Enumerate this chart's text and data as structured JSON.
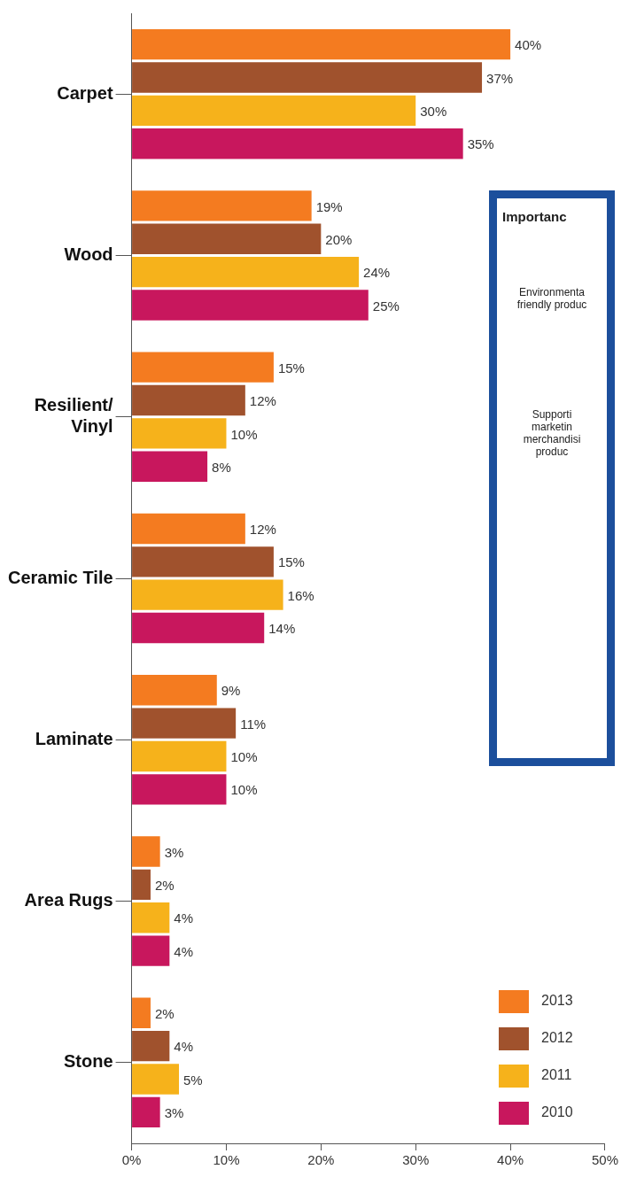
{
  "chart_data": [
    {
      "type": "bar",
      "orientation": "horizontal",
      "categories": [
        "Carpet",
        "Wood",
        "Resilient/\nVinyl",
        "Ceramic Tile",
        "Laminate",
        "Area Rugs",
        "Stone"
      ],
      "series": [
        {
          "name": "2013",
          "color": "#f47b20",
          "values": [
            40,
            19,
            15,
            12,
            9,
            3,
            2
          ],
          "value_labels": [
            "40%",
            "19%",
            "15%",
            "12%",
            "9%",
            "3%",
            "2%"
          ]
        },
        {
          "name": "2012",
          "color": "#a0522d",
          "values": [
            37,
            20,
            12,
            15,
            11,
            2,
            4
          ],
          "value_labels": [
            "37%",
            "20%",
            "12%",
            "15%",
            "11%",
            "2%",
            "4%"
          ]
        },
        {
          "name": "2011",
          "color": "#f6b21b",
          "values": [
            30,
            24,
            10,
            16,
            10,
            4,
            5
          ],
          "value_labels": [
            "30%",
            "24%",
            "10%",
            "16%",
            "10%",
            "4%",
            "5%"
          ]
        },
        {
          "name": "2010",
          "color": "#c8175d",
          "values": [
            35,
            25,
            8,
            14,
            10,
            4,
            3
          ],
          "value_labels": [
            "35%",
            "25%",
            "8%",
            "14%",
            "10%",
            "4%",
            "3%"
          ]
        }
      ],
      "xlim": [
        0,
        50
      ],
      "xticks": [
        {
          "value": 0,
          "label": "0%"
        },
        {
          "value": 10,
          "label": "10%"
        },
        {
          "value": 20,
          "label": "20%"
        },
        {
          "value": 30,
          "label": "30%"
        },
        {
          "value": 40,
          "label": "40%"
        },
        {
          "value": 50,
          "label": "50%"
        }
      ],
      "legend": "bottom right"
    },
    {
      "type": "other",
      "title": "Importanc",
      "annotations": [
        "Environmenta\nfriendly produc",
        "Supporti\nmarketin\nmerchandisi\nproduc"
      ]
    }
  ]
}
